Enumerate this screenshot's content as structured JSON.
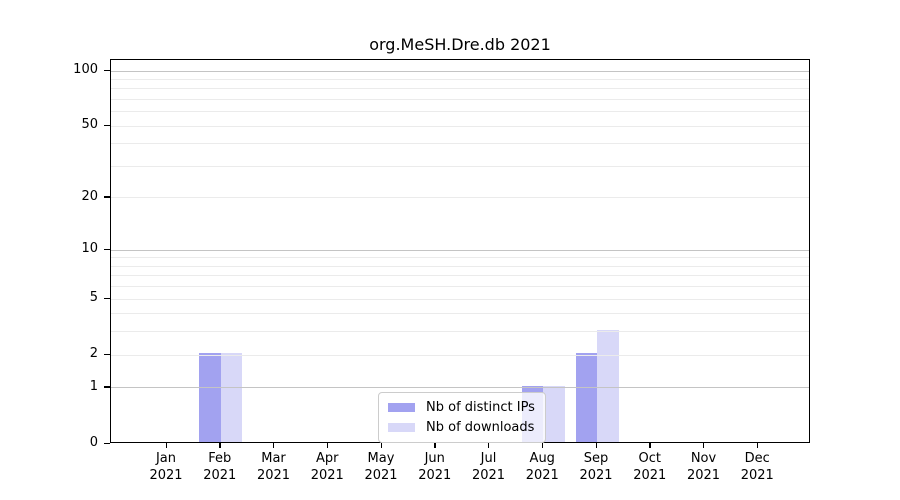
{
  "title": "org.MeSH.Dre.db 2021",
  "chart_data": {
    "type": "bar",
    "title": "org.MeSH.Dre.db 2021",
    "xlabel": "",
    "ylabel": "",
    "y_scale": "log1p",
    "ylim": [
      0,
      100
    ],
    "grid": "on",
    "legend_position": "bottom-center",
    "categories": [
      "Jan 2021",
      "Feb 2021",
      "Mar 2021",
      "Apr 2021",
      "May 2021",
      "Jun 2021",
      "Jul 2021",
      "Aug 2021",
      "Sep 2021",
      "Oct 2021",
      "Nov 2021",
      "Dec 2021"
    ],
    "series": [
      {
        "name": "Nb of distinct IPs",
        "color": "#a2a2f0",
        "values": [
          0,
          2,
          0,
          0,
          0,
          0,
          0,
          1,
          2,
          0,
          0,
          0
        ]
      },
      {
        "name": "Nb of downloads",
        "color": "#d8d8f8",
        "values": [
          0,
          2,
          0,
          0,
          0,
          0,
          0,
          1,
          3,
          0,
          0,
          0
        ]
      }
    ],
    "y_ticks": [
      100,
      50,
      20,
      10,
      5,
      2,
      1,
      0
    ],
    "major_gridlines": [
      1,
      10,
      100
    ],
    "minor_gridlines": [
      2,
      3,
      4,
      5,
      6,
      7,
      8,
      9,
      20,
      30,
      40,
      50,
      60,
      70,
      80,
      90
    ]
  },
  "colors": {
    "axis": "#000000",
    "grid_major": "#c4c4c4",
    "grid_minor": "#ebebeb",
    "bar_distinct_ips": "#a2a2f0",
    "bar_downloads": "#d8d8f8",
    "legend_border": "#cccccc"
  }
}
